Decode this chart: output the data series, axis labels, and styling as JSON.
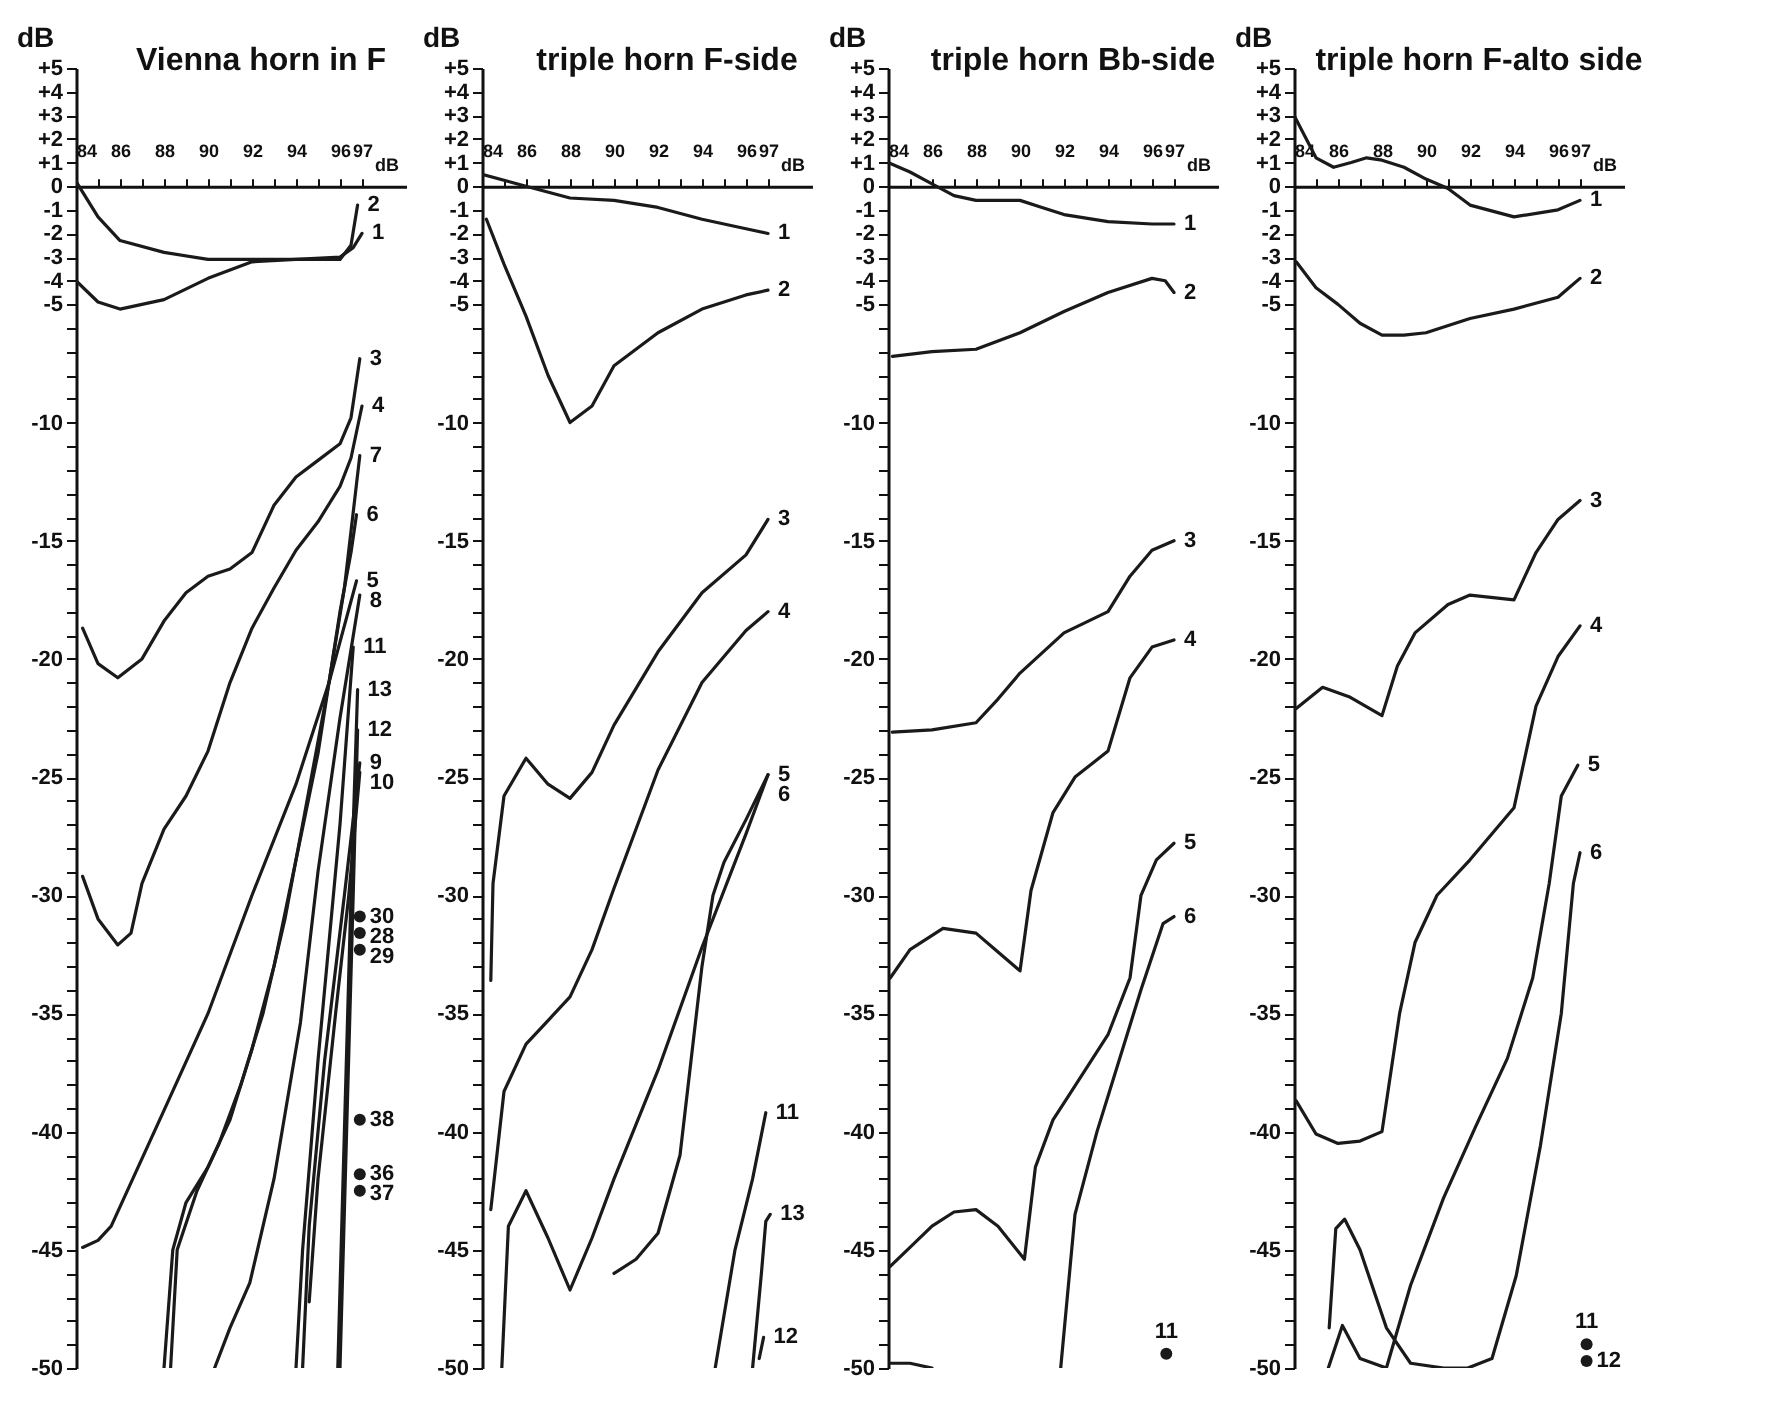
{
  "chart_data": [
    {
      "type": "line",
      "title": "Vienna horn  in F",
      "xlabel": "dB",
      "ylabel": "dB",
      "xlim": [
        84,
        99
      ],
      "ylim": [
        -50,
        5
      ],
      "grid": false,
      "legend": false,
      "xticks": [
        84,
        {
          "value": 85,
          "label": null
        },
        86,
        {
          "value": 87,
          "label": null
        },
        88,
        {
          "value": 89,
          "label": null
        },
        90,
        {
          "value": 91,
          "label": null
        },
        92,
        {
          "value": 93,
          "label": null
        },
        94,
        {
          "value": 95,
          "label": null
        },
        96,
        97
      ],
      "yticks": [
        {
          "value": 5,
          "label": "+5"
        },
        {
          "value": 4,
          "label": "+4"
        },
        {
          "value": 3,
          "label": "+3"
        },
        {
          "value": 2,
          "label": "+2"
        },
        {
          "value": 1,
          "label": "+1"
        },
        0,
        -1,
        -2,
        -3,
        -4,
        -5,
        {
          "value": -6,
          "label": null
        },
        {
          "value": -7,
          "label": null
        },
        {
          "value": -8,
          "label": null
        },
        {
          "value": -9,
          "label": null
        },
        -10,
        {
          "value": -11,
          "label": null
        },
        {
          "value": -12,
          "label": null
        },
        {
          "value": -13,
          "label": null
        },
        {
          "value": -14,
          "label": null
        },
        -15,
        {
          "value": -16,
          "label": null
        },
        {
          "value": -17,
          "label": null
        },
        {
          "value": -18,
          "label": null
        },
        {
          "value": -19,
          "label": null
        },
        -20,
        {
          "value": -21,
          "label": null
        },
        {
          "value": -22,
          "label": null
        },
        {
          "value": -23,
          "label": null
        },
        {
          "value": -24,
          "label": null
        },
        -25,
        {
          "value": -26,
          "label": null
        },
        {
          "value": -27,
          "label": null
        },
        {
          "value": -28,
          "label": null
        },
        {
          "value": -29,
          "label": null
        },
        -30,
        {
          "value": -31,
          "label": null
        },
        {
          "value": -32,
          "label": null
        },
        {
          "value": -33,
          "label": null
        },
        {
          "value": -34,
          "label": null
        },
        -35,
        {
          "value": -36,
          "label": null
        },
        {
          "value": -37,
          "label": null
        },
        {
          "value": -38,
          "label": null
        },
        {
          "value": -39,
          "label": null
        },
        -40,
        {
          "value": -41,
          "label": null
        },
        {
          "value": -42,
          "label": null
        },
        {
          "value": -43,
          "label": null
        },
        {
          "value": -44,
          "label": null
        },
        -45,
        {
          "value": -46,
          "label": null
        },
        {
          "value": -47,
          "label": null
        },
        {
          "value": -48,
          "label": null
        },
        {
          "value": -49,
          "label": null
        },
        -50
      ],
      "series": [
        {
          "name": "1",
          "color": "#1a1a1a",
          "x": [
            84,
            85,
            86,
            88,
            90,
            92,
            94,
            96,
            96.6,
            97
          ],
          "values": [
            0.2,
            -1.3,
            -2.3,
            -2.8,
            -3.1,
            -3.1,
            -3.1,
            -3.0,
            -2.6,
            -2.0
          ]
        },
        {
          "name": "2",
          "color": "#1a1a1a",
          "x": [
            84,
            85,
            86,
            88,
            90,
            92,
            94,
            96,
            96.5,
            96.8
          ],
          "values": [
            -4.0,
            -4.9,
            -5.2,
            -4.8,
            -3.9,
            -3.2,
            -3.1,
            -3.1,
            -2.5,
            -0.8
          ]
        },
        {
          "name": "3",
          "color": "#1a1a1a",
          "x": [
            84.3,
            85,
            85.9,
            87,
            88,
            89,
            90,
            91,
            92,
            93,
            94,
            95,
            96,
            96.5,
            96.9
          ],
          "values": [
            -18.7,
            -20.2,
            -20.8,
            -20,
            -18.4,
            -17.2,
            -16.5,
            -16.2,
            -15.5,
            -13.5,
            -12.3,
            -11.6,
            -10.9,
            -9.8,
            -7.3
          ]
        },
        {
          "name": "4",
          "color": "#1a1a1a",
          "x": [
            84.3,
            85,
            85.9,
            86.5,
            87,
            88,
            89,
            90,
            91,
            92,
            93,
            94,
            95,
            96,
            96.5,
            97
          ],
          "values": [
            -29.2,
            -31,
            -32.1,
            -31.6,
            -29.5,
            -27.2,
            -25.8,
            -23.9,
            -21,
            -18.7,
            -17,
            -15.4,
            -14.2,
            -12.7,
            -11.5,
            -9.3
          ]
        },
        {
          "name": "5",
          "color": "#1a1a1a",
          "x": [
            84.3,
            85,
            85.6,
            88,
            90,
            92,
            94,
            95.5,
            96.75
          ],
          "values": [
            -44.9,
            -44.6,
            -44,
            -39.1,
            -35,
            -30,
            -25.3,
            -21,
            -16.7
          ]
        },
        {
          "name": "6",
          "color": "#1a1a1a",
          "x": [
            88,
            88.4,
            89,
            90,
            91,
            92,
            93,
            94,
            95,
            95.5,
            96,
            96.5,
            96.75
          ],
          "values": [
            -50,
            -45,
            -43,
            -41.5,
            -39.5,
            -36.5,
            -33,
            -28.5,
            -24,
            -21,
            -18,
            -15.5,
            -13.9
          ]
        },
        {
          "name": "7",
          "color": "#1a1a1a",
          "x": [
            88.3,
            88.6,
            89.5,
            90.5,
            91.5,
            92.5,
            93.5,
            94.5,
            95.5,
            96.2,
            96.9
          ],
          "values": [
            -50,
            -45,
            -42.5,
            -40.5,
            -38,
            -35,
            -31,
            -26,
            -21,
            -17,
            -11.4
          ]
        },
        {
          "name": "8",
          "color": "#1a1a1a",
          "x": [
            90.3,
            91,
            91.9,
            93,
            94.2,
            95,
            96,
            96.9
          ],
          "values": [
            -50,
            -48.3,
            -46.4,
            -42,
            -35.4,
            -29,
            -22.5,
            -17.3
          ]
        },
        {
          "name": "9",
          "color": "#1a1a1a",
          "x": [
            94.3,
            94.6,
            95.3,
            96.2,
            96.9
          ],
          "values": [
            -50,
            -44,
            -37,
            -30,
            -24.4
          ]
        },
        {
          "name": "10",
          "color": "#1a1a1a",
          "x": [
            94.6,
            95,
            95.8,
            96.4,
            96.9
          ],
          "values": [
            -47.2,
            -42,
            -35,
            -30,
            -24.8
          ]
        },
        {
          "name": "11",
          "color": "#1a1a1a",
          "x": [
            94.0,
            94.3,
            95,
            96,
            96.6
          ],
          "values": [
            -50,
            -45,
            -37,
            -27,
            -19.5
          ]
        },
        {
          "name": "12",
          "color": "#1a1a1a",
          "x": [
            96.0,
            96.3,
            96.6,
            96.8
          ],
          "values": [
            -50,
            -40,
            -30,
            -23.0
          ]
        },
        {
          "name": "13",
          "color": "#1a1a1a",
          "x": [
            95.9,
            96.2,
            96.5,
            96.8
          ],
          "values": [
            -50,
            -40,
            -30,
            -21.3
          ]
        },
        {
          "name": "30",
          "type": "scatter",
          "color": "#1a1a1a",
          "x": [
            96.9
          ],
          "values": [
            -30.9
          ]
        },
        {
          "name": "28",
          "type": "scatter",
          "color": "#1a1a1a",
          "x": [
            96.9
          ],
          "values": [
            -31.6
          ]
        },
        {
          "name": "29",
          "type": "scatter",
          "color": "#1a1a1a",
          "x": [
            96.9
          ],
          "values": [
            -32.3
          ]
        },
        {
          "name": "38",
          "type": "scatter",
          "color": "#1a1a1a",
          "x": [
            96.9
          ],
          "values": [
            -39.5
          ]
        },
        {
          "name": "36",
          "type": "scatter",
          "color": "#1a1a1a",
          "x": [
            96.9
          ],
          "values": [
            -41.8
          ]
        },
        {
          "name": "37",
          "type": "scatter",
          "color": "#1a1a1a",
          "x": [
            96.9
          ],
          "values": [
            -42.5
          ]
        }
      ]
    },
    {
      "type": "line",
      "title": "triple horn F-side",
      "xlabel": "dB",
      "ylabel": "dB",
      "xlim": [
        84,
        99
      ],
      "ylim": [
        -50,
        5
      ],
      "grid": false,
      "legend": false,
      "xticks": [
        84,
        {
          "value": 85,
          "label": null
        },
        86,
        {
          "value": 87,
          "label": null
        },
        88,
        {
          "value": 89,
          "label": null
        },
        90,
        {
          "value": 91,
          "label": null
        },
        92,
        {
          "value": 93,
          "label": null
        },
        94,
        {
          "value": 95,
          "label": null
        },
        96,
        97
      ],
      "yticks": [
        {
          "value": 5,
          "label": "+5"
        },
        {
          "value": 4,
          "label": "+4"
        },
        {
          "value": 3,
          "label": "+3"
        },
        {
          "value": 2,
          "label": "+2"
        },
        {
          "value": 1,
          "label": "+1"
        },
        0,
        -1,
        -2,
        -3,
        -4,
        -5,
        {
          "value": -6,
          "label": null
        },
        {
          "value": -7,
          "label": null
        },
        {
          "value": -8,
          "label": null
        },
        {
          "value": -9,
          "label": null
        },
        -10,
        {
          "value": -11,
          "label": null
        },
        {
          "value": -12,
          "label": null
        },
        {
          "value": -13,
          "label": null
        },
        {
          "value": -14,
          "label": null
        },
        -15,
        {
          "value": -16,
          "label": null
        },
        {
          "value": -17,
          "label": null
        },
        {
          "value": -18,
          "label": null
        },
        {
          "value": -19,
          "label": null
        },
        -20,
        {
          "value": -21,
          "label": null
        },
        {
          "value": -22,
          "label": null
        },
        {
          "value": -23,
          "label": null
        },
        {
          "value": -24,
          "label": null
        },
        -25,
        {
          "value": -26,
          "label": null
        },
        {
          "value": -27,
          "label": null
        },
        {
          "value": -28,
          "label": null
        },
        {
          "value": -29,
          "label": null
        },
        -30,
        {
          "value": -31,
          "label": null
        },
        {
          "value": -32,
          "label": null
        },
        {
          "value": -33,
          "label": null
        },
        {
          "value": -34,
          "label": null
        },
        -35,
        {
          "value": -36,
          "label": null
        },
        {
          "value": -37,
          "label": null
        },
        {
          "value": -38,
          "label": null
        },
        {
          "value": -39,
          "label": null
        },
        -40,
        {
          "value": -41,
          "label": null
        },
        {
          "value": -42,
          "label": null
        },
        {
          "value": -43,
          "label": null
        },
        {
          "value": -44,
          "label": null
        },
        -45,
        {
          "value": -46,
          "label": null
        },
        {
          "value": -47,
          "label": null
        },
        {
          "value": -48,
          "label": null
        },
        {
          "value": -49,
          "label": null
        },
        -50
      ],
      "series": [
        {
          "name": "1",
          "color": "#1a1a1a",
          "x": [
            84,
            86,
            88,
            90,
            92,
            94,
            96,
            97
          ],
          "values": [
            0.5,
            0,
            -0.5,
            -0.6,
            -0.9,
            -1.4,
            -1.8,
            -2.0
          ]
        },
        {
          "name": "2",
          "color": "#1a1a1a",
          "x": [
            84.2,
            85,
            86,
            87,
            88,
            89,
            90,
            92,
            94,
            96,
            97
          ],
          "values": [
            -1.4,
            -3.3,
            -5.5,
            -8,
            -10,
            -9.3,
            -7.6,
            -6.2,
            -5.2,
            -4.6,
            -4.4
          ]
        },
        {
          "name": "3",
          "color": "#1a1a1a",
          "x": [
            84.4,
            84.5,
            85,
            86,
            87,
            88,
            89,
            90,
            92,
            94,
            96,
            97
          ],
          "values": [
            -33.6,
            -29.5,
            -25.8,
            -24.2,
            -25.3,
            -25.9,
            -24.8,
            -22.8,
            -19.7,
            -17.2,
            -15.6,
            -14.1
          ]
        },
        {
          "name": "4",
          "color": "#1a1a1a",
          "x": [
            84.4,
            85,
            86,
            87,
            88,
            89,
            90,
            92,
            94,
            96,
            97
          ],
          "values": [
            -43.3,
            -38.3,
            -36.3,
            -35.3,
            -34.3,
            -32.3,
            -29.7,
            -24.7,
            -21,
            -18.8,
            -18.0
          ]
        },
        {
          "name": "5",
          "color": "#1a1a1a",
          "x": [
            84.9,
            85.2,
            86,
            87,
            88,
            89,
            90,
            92,
            94,
            96,
            97
          ],
          "values": [
            -50,
            -44,
            -42.5,
            -44.5,
            -46.7,
            -44.5,
            -42,
            -37.4,
            -32.2,
            -27.4,
            -24.9
          ]
        },
        {
          "name": "6",
          "color": "#1a1a1a",
          "x": [
            90,
            91,
            92,
            93,
            93.5,
            94,
            94.5,
            95,
            96,
            97
          ],
          "values": [
            -46,
            -45.4,
            -44.3,
            -41,
            -37,
            -33,
            -30,
            -28.6,
            -26.8,
            -24.9
          ]
        },
        {
          "name": "11",
          "color": "#1a1a1a",
          "x": [
            94.6,
            95.5,
            96.3,
            96.9
          ],
          "values": [
            -50,
            -45,
            -42,
            -39.2
          ]
        },
        {
          "name": "13",
          "color": "#1a1a1a",
          "x": [
            96.3,
            96.7,
            96.9,
            97.1
          ],
          "values": [
            -50,
            -46,
            -43.8,
            -43.5
          ]
        },
        {
          "name": "12",
          "color": "#1a1a1a",
          "x": [
            96.6,
            96.8
          ],
          "values": [
            -49.6,
            -48.7
          ]
        }
      ]
    },
    {
      "type": "line",
      "title": "triple horn Bb-side",
      "xlabel": "dB",
      "ylabel": "dB",
      "xlim": [
        84,
        99
      ],
      "ylim": [
        -50,
        5
      ],
      "grid": false,
      "legend": false,
      "xticks": [
        84,
        {
          "value": 85,
          "label": null
        },
        86,
        {
          "value": 87,
          "label": null
        },
        88,
        {
          "value": 89,
          "label": null
        },
        90,
        {
          "value": 91,
          "label": null
        },
        92,
        {
          "value": 93,
          "label": null
        },
        94,
        {
          "value": 95,
          "label": null
        },
        96,
        97
      ],
      "yticks": [
        {
          "value": 5,
          "label": "+5"
        },
        {
          "value": 4,
          "label": "+4"
        },
        {
          "value": 3,
          "label": "+3"
        },
        {
          "value": 2,
          "label": "+2"
        },
        {
          "value": 1,
          "label": "+1"
        },
        0,
        -1,
        -2,
        -3,
        -4,
        -5,
        {
          "value": -6,
          "label": null
        },
        {
          "value": -7,
          "label": null
        },
        {
          "value": -8,
          "label": null
        },
        {
          "value": -9,
          "label": null
        },
        -10,
        {
          "value": -11,
          "label": null
        },
        {
          "value": -12,
          "label": null
        },
        {
          "value": -13,
          "label": null
        },
        {
          "value": -14,
          "label": null
        },
        -15,
        {
          "value": -16,
          "label": null
        },
        {
          "value": -17,
          "label": null
        },
        {
          "value": -18,
          "label": null
        },
        {
          "value": -19,
          "label": null
        },
        -20,
        {
          "value": -21,
          "label": null
        },
        {
          "value": -22,
          "label": null
        },
        {
          "value": -23,
          "label": null
        },
        {
          "value": -24,
          "label": null
        },
        -25,
        {
          "value": -26,
          "label": null
        },
        {
          "value": -27,
          "label": null
        },
        {
          "value": -28,
          "label": null
        },
        {
          "value": -29,
          "label": null
        },
        -30,
        {
          "value": -31,
          "label": null
        },
        {
          "value": -32,
          "label": null
        },
        {
          "value": -33,
          "label": null
        },
        {
          "value": -34,
          "label": null
        },
        -35,
        {
          "value": -36,
          "label": null
        },
        {
          "value": -37,
          "label": null
        },
        {
          "value": -38,
          "label": null
        },
        {
          "value": -39,
          "label": null
        },
        -40,
        {
          "value": -41,
          "label": null
        },
        {
          "value": -42,
          "label": null
        },
        {
          "value": -43,
          "label": null
        },
        {
          "value": -44,
          "label": null
        },
        -45,
        {
          "value": -46,
          "label": null
        },
        {
          "value": -47,
          "label": null
        },
        {
          "value": -48,
          "label": null
        },
        {
          "value": -49,
          "label": null
        },
        -50
      ],
      "series": [
        {
          "name": "1",
          "color": "#1a1a1a",
          "x": [
            84,
            85,
            86,
            87,
            88,
            90,
            91,
            92,
            94,
            96,
            97
          ],
          "values": [
            1.0,
            0.6,
            0.1,
            -0.4,
            -0.6,
            -0.6,
            -0.9,
            -1.2,
            -1.5,
            -1.6,
            -1.6
          ]
        },
        {
          "name": "2",
          "color": "#1a1a1a",
          "x": [
            84.2,
            86,
            88,
            90,
            92,
            94,
            96,
            96.6,
            97
          ],
          "values": [
            -7.2,
            -7.0,
            -6.9,
            -6.2,
            -5.3,
            -4.5,
            -3.9,
            -4.0,
            -4.5
          ]
        },
        {
          "name": "3",
          "color": "#1a1a1a",
          "x": [
            84.2,
            86,
            88,
            89,
            90,
            92,
            94,
            95,
            96,
            97
          ],
          "values": [
            -23.1,
            -23,
            -22.7,
            -21.7,
            -20.6,
            -18.9,
            -18.0,
            -16.5,
            -15.4,
            -15.0
          ]
        },
        {
          "name": "4",
          "color": "#1a1a1a",
          "x": [
            84.1,
            85,
            86.5,
            88,
            89,
            90,
            90.5,
            91.5,
            92.5,
            94,
            95,
            96,
            97
          ],
          "values": [
            -33.5,
            -32.3,
            -31.4,
            -31.6,
            -32.4,
            -33.2,
            -29.8,
            -26.5,
            -25,
            -23.9,
            -20.8,
            -19.5,
            -19.2
          ]
        },
        {
          "name": "5",
          "color": "#1a1a1a",
          "x": [
            84.1,
            85,
            86,
            87,
            88,
            89,
            90.2,
            90.7,
            91.5,
            92.2,
            94,
            95,
            95.5,
            96.2,
            97
          ],
          "values": [
            -45.7,
            -44.9,
            -44,
            -43.4,
            -43.3,
            -44,
            -45.4,
            -41.5,
            -39.5,
            -38.5,
            -35.9,
            -33.5,
            -30,
            -28.5,
            -27.8
          ]
        },
        {
          "name": "6",
          "color": "#1a1a1a",
          "x": [
            84.1,
            85,
            86,
            88,
            91.85,
            92.5,
            93.5,
            94.5,
            95.5,
            96.5,
            97
          ],
          "values": [
            -49.8,
            -49.8,
            -50,
            null,
            -50,
            -43.5,
            -40,
            -37,
            -34,
            -31.2,
            -30.9
          ]
        },
        {
          "name": "11",
          "type": "scatter",
          "color": "#1a1a1a",
          "x": [
            96.65
          ],
          "values": [
            -49.4
          ]
        }
      ]
    },
    {
      "type": "line",
      "title": "triple horn F-alto side",
      "xlabel": "dB",
      "ylabel": "dB",
      "xlim": [
        84,
        99
      ],
      "ylim": [
        -50,
        5
      ],
      "grid": false,
      "legend": false,
      "xticks": [
        84,
        {
          "value": 85,
          "label": null
        },
        86,
        {
          "value": 87,
          "label": null
        },
        88,
        {
          "value": 89,
          "label": null
        },
        90,
        {
          "value": 91,
          "label": null
        },
        92,
        {
          "value": 93,
          "label": null
        },
        94,
        {
          "value": 95,
          "label": null
        },
        96,
        97
      ],
      "yticks": [
        {
          "value": 5,
          "label": "+5"
        },
        {
          "value": 4,
          "label": "+4"
        },
        {
          "value": 3,
          "label": "+3"
        },
        {
          "value": 2,
          "label": "+2"
        },
        {
          "value": 1,
          "label": "+1"
        },
        0,
        -1,
        -2,
        -3,
        -4,
        -5,
        {
          "value": -6,
          "label": null
        },
        {
          "value": -7,
          "label": null
        },
        {
          "value": -8,
          "label": null
        },
        {
          "value": -9,
          "label": null
        },
        -10,
        {
          "value": -11,
          "label": null
        },
        {
          "value": -12,
          "label": null
        },
        {
          "value": -13,
          "label": null
        },
        {
          "value": -14,
          "label": null
        },
        -15,
        {
          "value": -16,
          "label": null
        },
        {
          "value": -17,
          "label": null
        },
        {
          "value": -18,
          "label": null
        },
        {
          "value": -19,
          "label": null
        },
        -20,
        {
          "value": -21,
          "label": null
        },
        {
          "value": -22,
          "label": null
        },
        {
          "value": -23,
          "label": null
        },
        {
          "value": -24,
          "label": null
        },
        -25,
        {
          "value": -26,
          "label": null
        },
        {
          "value": -27,
          "label": null
        },
        {
          "value": -28,
          "label": null
        },
        {
          "value": -29,
          "label": null
        },
        -30,
        {
          "value": -31,
          "label": null
        },
        {
          "value": -32,
          "label": null
        },
        {
          "value": -33,
          "label": null
        },
        {
          "value": -34,
          "label": null
        },
        -35,
        {
          "value": -36,
          "label": null
        },
        {
          "value": -37,
          "label": null
        },
        {
          "value": -38,
          "label": null
        },
        {
          "value": -39,
          "label": null
        },
        -40,
        {
          "value": -41,
          "label": null
        },
        {
          "value": -42,
          "label": null
        },
        {
          "value": -43,
          "label": null
        },
        {
          "value": -44,
          "label": null
        },
        -45,
        {
          "value": -46,
          "label": null
        },
        {
          "value": -47,
          "label": null
        },
        {
          "value": -48,
          "label": null
        },
        {
          "value": -49,
          "label": null
        },
        -50
      ],
      "series": [
        {
          "name": "1",
          "color": "#1a1a1a",
          "x": [
            84,
            85,
            85.8,
            86.6,
            87.3,
            88,
            89,
            90,
            91,
            92,
            94,
            96,
            97
          ],
          "values": [
            3.0,
            1.2,
            0.8,
            1.0,
            1.2,
            1.1,
            0.8,
            0.3,
            -0.1,
            -0.8,
            -1.3,
            -1.0,
            -0.6
          ]
        },
        {
          "name": "2",
          "color": "#1a1a1a",
          "x": [
            84.1,
            85,
            86,
            87,
            88,
            89,
            90,
            92,
            94,
            96,
            96.5,
            97
          ],
          "values": [
            -3.2,
            -4.3,
            -5.0,
            -5.8,
            -6.3,
            -6.3,
            -6.2,
            -5.6,
            -5.2,
            -4.7,
            -4.3,
            -3.9
          ]
        },
        {
          "name": "3",
          "color": "#1a1a1a",
          "x": [
            84.1,
            85.3,
            86.5,
            88,
            88.7,
            89.5,
            91,
            92,
            94,
            95,
            96,
            97
          ],
          "values": [
            -22.1,
            -21.2,
            -21.6,
            -22.4,
            -20.3,
            -18.9,
            -17.7,
            -17.3,
            -17.5,
            -15.5,
            -14.1,
            -13.3
          ]
        },
        {
          "name": "4",
          "color": "#1a1a1a",
          "x": [
            84.1,
            85,
            86,
            87,
            88,
            88.8,
            89.5,
            90.5,
            92,
            94,
            95,
            96,
            97
          ],
          "values": [
            -38.7,
            -40.1,
            -40.5,
            -40.4,
            -40,
            -35,
            -32,
            -30,
            -28.5,
            -26.3,
            -22,
            -19.9,
            -18.6
          ]
        },
        {
          "name": "5",
          "color": "#1a1a1a",
          "x": [
            85.56,
            86.2,
            87,
            88.2,
            89.3,
            90.8,
            92.25,
            93.7,
            94.85,
            95.6,
            96.15,
            96.9
          ],
          "values": [
            -50,
            -48.2,
            -49.6,
            -50,
            -46.5,
            -42.8,
            -39.8,
            -36.9,
            -33.5,
            -29.5,
            -25.8,
            -24.5
          ]
        },
        {
          "name": "6",
          "color": "#1a1a1a",
          "x": [
            85.6,
            85.9,
            86.3,
            87,
            88.2,
            89.3,
            90.8,
            91.9,
            93,
            94.1,
            95.2,
            96.15,
            96.7,
            97
          ],
          "values": [
            -48.3,
            -44.1,
            -43.7,
            -45,
            -48.3,
            -49.8,
            -50,
            -50,
            -49.6,
            -46.1,
            -40.6,
            -35,
            -29.5,
            -28.2
          ]
        },
        {
          "name": "11",
          "type": "scatter",
          "color": "#1a1a1a",
          "x": [
            97.3
          ],
          "values": [
            -49.0
          ]
        },
        {
          "name": "12",
          "type": "scatter",
          "color": "#1a1a1a",
          "x": [
            97.3
          ],
          "values": [
            -49.7
          ]
        }
      ]
    }
  ]
}
